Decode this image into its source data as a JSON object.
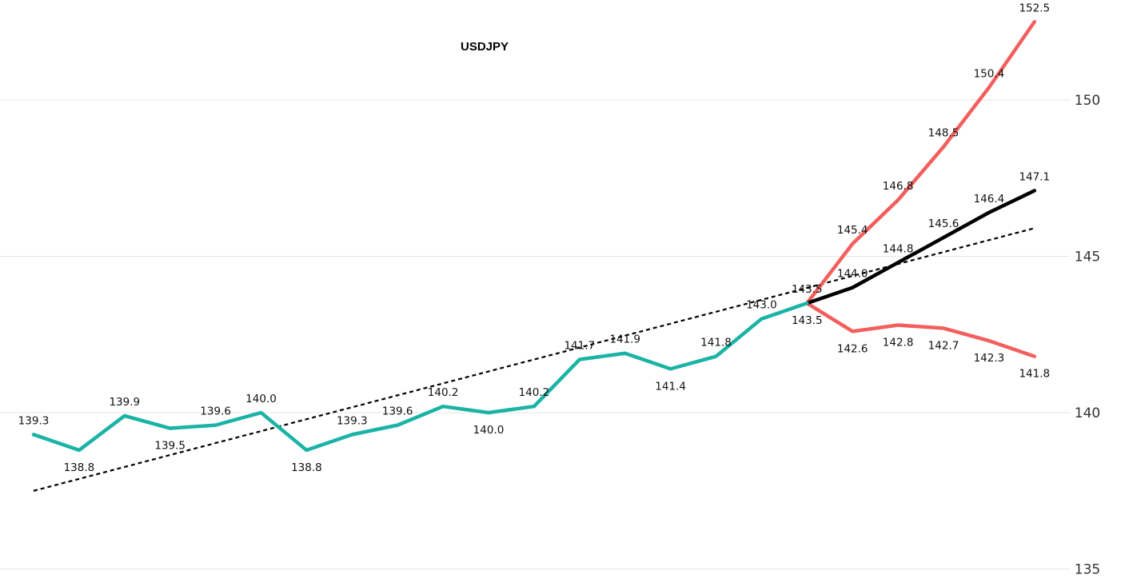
{
  "chart_data": {
    "type": "line",
    "title": "USDJPY",
    "xlabel": "",
    "ylabel": "",
    "ylim": [
      135,
      152.5
    ],
    "yticks": [
      135,
      140,
      145,
      150
    ],
    "ytick_labels": [
      "135",
      "140",
      "145",
      "150"
    ],
    "grid": true,
    "colors": {
      "history": "#1ab3a6",
      "scenario": "#f25f5c",
      "base": "#000000",
      "trend": "#000000"
    },
    "history": {
      "x": [
        0,
        1,
        2,
        3,
        4,
        5,
        6,
        7,
        8,
        9,
        10,
        11,
        12,
        13,
        14,
        15,
        16,
        17
      ],
      "values": [
        139.3,
        138.8,
        139.9,
        139.5,
        139.6,
        140.0,
        138.8,
        139.3,
        139.6,
        140.2,
        140.0,
        140.2,
        141.7,
        141.9,
        141.4,
        141.8,
        143.0,
        143.5
      ],
      "labels": [
        "139.3",
        "138.8",
        "139.9",
        "139.5",
        "139.6",
        "140.0",
        "138.8",
        "139.3",
        "139.6",
        "140.2",
        "140.0",
        "140.2",
        "141.7",
        "141.9",
        "141.4",
        "141.8",
        "143.0",
        "143.5"
      ]
    },
    "scenarios": [
      {
        "x": [
          17,
          18,
          19,
          20,
          21,
          22
        ],
        "values": [
          143.5,
          145.4,
          146.8,
          148.5,
          150.4,
          152.5
        ],
        "labels": [
          "143.5",
          "145.4",
          "146.8",
          "148.5",
          "150.4",
          "152.5"
        ]
      },
      {
        "x": [
          17,
          18,
          19,
          20,
          21,
          22
        ],
        "values": [
          143.5,
          144.0,
          144.8,
          145.6,
          146.4,
          147.1
        ],
        "labels": [
          "",
          "144.0",
          "144.8",
          "145.6",
          "146.4",
          "147.1"
        ]
      },
      {
        "x": [
          17,
          18,
          19,
          20,
          21,
          22
        ],
        "values": [
          143.5,
          142.6,
          142.8,
          142.7,
          142.3,
          141.8
        ],
        "labels": [
          "",
          "142.6",
          "142.8",
          "142.7",
          "142.3",
          "141.8"
        ]
      }
    ],
    "trendline": {
      "x": [
        0,
        22
      ],
      "values": [
        137.5,
        145.9
      ]
    }
  }
}
